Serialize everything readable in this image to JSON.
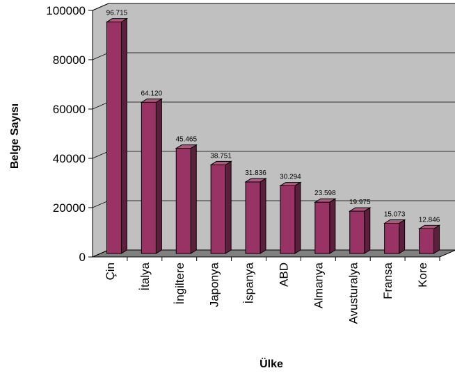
{
  "chart_data": {
    "type": "bar",
    "title": "",
    "xlabel": "Ülke",
    "ylabel": "Belge Sayısı",
    "ylim": [
      0,
      100000
    ],
    "y_ticks": [
      "0",
      "20000",
      "40000",
      "60000",
      "80000",
      "100000"
    ],
    "grid": true,
    "style": "3d",
    "categories": [
      "Çin",
      "İtalya",
      "İngiltere",
      "Japonya",
      "İspanya",
      "ABD",
      "Almanya",
      "Avusturalya",
      "Fransa",
      "Kore"
    ],
    "values": [
      96715,
      64120,
      45465,
      38751,
      31836,
      30294,
      23598,
      19975,
      15073,
      12846
    ],
    "data_labels": [
      "96.715",
      "64.120",
      "45.465",
      "38.751",
      "31.836",
      "30.294",
      "23.598",
      "19.975",
      "15.073",
      "12.846"
    ],
    "colors": {
      "bar_front": "#993366",
      "bar_side": "#5c1f3d",
      "bar_top": "#b05580",
      "wall": "#c0c0c0",
      "floor": "#808080",
      "grid": "#000000"
    }
  }
}
